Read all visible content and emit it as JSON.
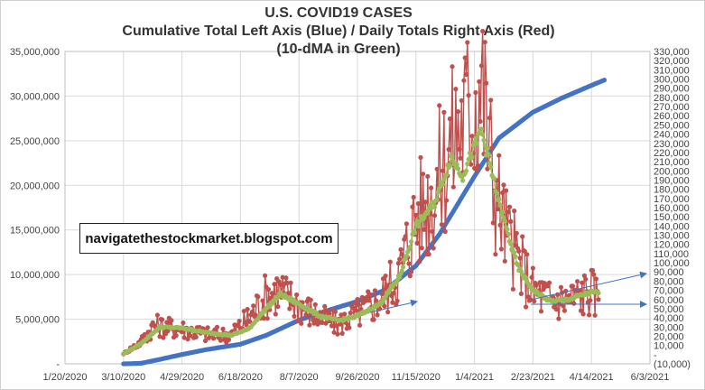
{
  "chart_data": {
    "type": "line",
    "title": "U.S. COVID19 CASES",
    "subtitle": "Cumulative Total Left Axis (Blue) / Daily Totals Right Axis (Red)",
    "subtitle2": "(10-dMA in Green)",
    "annotation": "navigatethestockmarket.blogspot.com",
    "x_ticks": [
      "1/20/2020",
      "3/10/2020",
      "4/29/2020",
      "6/18/2020",
      "8/7/2020",
      "9/26/2020",
      "11/15/2020",
      "1/4/2021",
      "2/23/2021",
      "4/14/2021",
      "6/3/2021"
    ],
    "left_axis": {
      "ylim": [
        0,
        35000000
      ],
      "ticks": [
        "-",
        "5,000,000",
        "10,000,000",
        "15,000,000",
        "20,000,000",
        "25,000,000",
        "30,000,000",
        "35,000,000"
      ]
    },
    "right_axis": {
      "ylim": [
        -10000,
        330000
      ],
      "ticks": [
        "(10,000)",
        "-",
        "10,000",
        "20,000",
        "30,000",
        "40,000",
        "50,000",
        "60,000",
        "70,000",
        "80,000",
        "90,000",
        "100,000",
        "110,000",
        "120,000",
        "130,000",
        "140,000",
        "150,000",
        "160,000",
        "170,000",
        "180,000",
        "190,000",
        "200,000",
        "210,000",
        "220,000",
        "230,000",
        "240,000",
        "250,000",
        "260,000",
        "270,000",
        "280,000",
        "290,000",
        "300,000",
        "310,000",
        "320,000",
        "330,000"
      ]
    },
    "series": [
      {
        "color": "#4472C4",
        "axis": "left",
        "points": [
          [
            "3/10/2020",
            1000
          ],
          [
            "3/25/2020",
            60000
          ],
          [
            "4/10/2020",
            500000
          ],
          [
            "4/29/2020",
            1050000
          ],
          [
            "5/20/2020",
            1600000
          ],
          [
            "6/18/2020",
            2200000
          ],
          [
            "7/10/2020",
            3200000
          ],
          [
            "8/7/2020",
            4900000
          ],
          [
            "9/1/2020",
            6000000
          ],
          [
            "9/26/2020",
            7000000
          ],
          [
            "10/20/2020",
            8300000
          ],
          [
            "11/15/2020",
            11000000
          ],
          [
            "12/5/2020",
            14500000
          ],
          [
            "1/4/2021",
            21000000
          ],
          [
            "1/25/2021",
            25300000
          ],
          [
            "2/23/2021",
            28200000
          ],
          [
            "3/20/2021",
            29800000
          ],
          [
            "4/14/2021",
            31200000
          ],
          [
            "4/25/2021",
            31800000
          ]
        ]
      },
      {
        "color": "#C0504D",
        "axis": "right",
        "points": [
          [
            "3/10/2020",
            1000
          ],
          [
            "3/25/2020",
            14000
          ],
          [
            "4/5/2020",
            32000
          ],
          [
            "4/15/2020",
            30000
          ],
          [
            "4/29/2020",
            28000
          ],
          [
            "5/20/2020",
            22000
          ],
          [
            "6/10/2020",
            22000
          ],
          [
            "6/25/2020",
            40000
          ],
          [
            "7/10/2020",
            65000
          ],
          [
            "7/20/2020",
            70000
          ],
          [
            "8/7/2020",
            55000
          ],
          [
            "8/25/2020",
            40000
          ],
          [
            "9/10/2020",
            33000
          ],
          [
            "9/26/2020",
            45000
          ],
          [
            "10/15/2020",
            60000
          ],
          [
            "11/1/2020",
            90000
          ],
          [
            "11/15/2020",
            150000
          ],
          [
            "12/1/2020",
            180000
          ],
          [
            "12/15/2020",
            230000
          ],
          [
            "1/4/2021",
            280000
          ],
          [
            "1/10/2021",
            300000
          ],
          [
            "1/20/2021",
            190000
          ],
          [
            "2/1/2021",
            130000
          ],
          [
            "2/23/2021",
            70000
          ],
          [
            "3/10/2021",
            60000
          ],
          [
            "3/25/2021",
            60000
          ],
          [
            "4/14/2021",
            70000
          ],
          [
            "4/20/2021",
            60000
          ]
        ]
      },
      {
        "color": "#9BBB59",
        "axis": "right",
        "points": [
          [
            "3/10/2020",
            1000
          ],
          [
            "3/25/2020",
            12000
          ],
          [
            "4/10/2020",
            30000
          ],
          [
            "4/29/2020",
            29000
          ],
          [
            "5/20/2020",
            24000
          ],
          [
            "6/10/2020",
            21000
          ],
          [
            "6/25/2020",
            28000
          ],
          [
            "7/10/2020",
            50000
          ],
          [
            "7/22/2020",
            66000
          ],
          [
            "8/7/2020",
            55000
          ],
          [
            "8/25/2020",
            42000
          ],
          [
            "9/10/2020",
            37000
          ],
          [
            "9/26/2020",
            42000
          ],
          [
            "10/15/2020",
            55000
          ],
          [
            "11/1/2020",
            85000
          ],
          [
            "11/15/2020",
            140000
          ],
          [
            "12/1/2020",
            165000
          ],
          [
            "12/15/2020",
            215000
          ],
          [
            "12/25/2020",
            195000
          ],
          [
            "1/10/2021",
            245000
          ],
          [
            "1/25/2021",
            165000
          ],
          [
            "2/10/2021",
            95000
          ],
          [
            "2/23/2021",
            70000
          ],
          [
            "3/10/2021",
            58000
          ],
          [
            "3/25/2021",
            60000
          ],
          [
            "4/14/2021",
            68000
          ],
          [
            "4/20/2021",
            67000
          ]
        ]
      }
    ],
    "legend": "none",
    "grid": true
  }
}
